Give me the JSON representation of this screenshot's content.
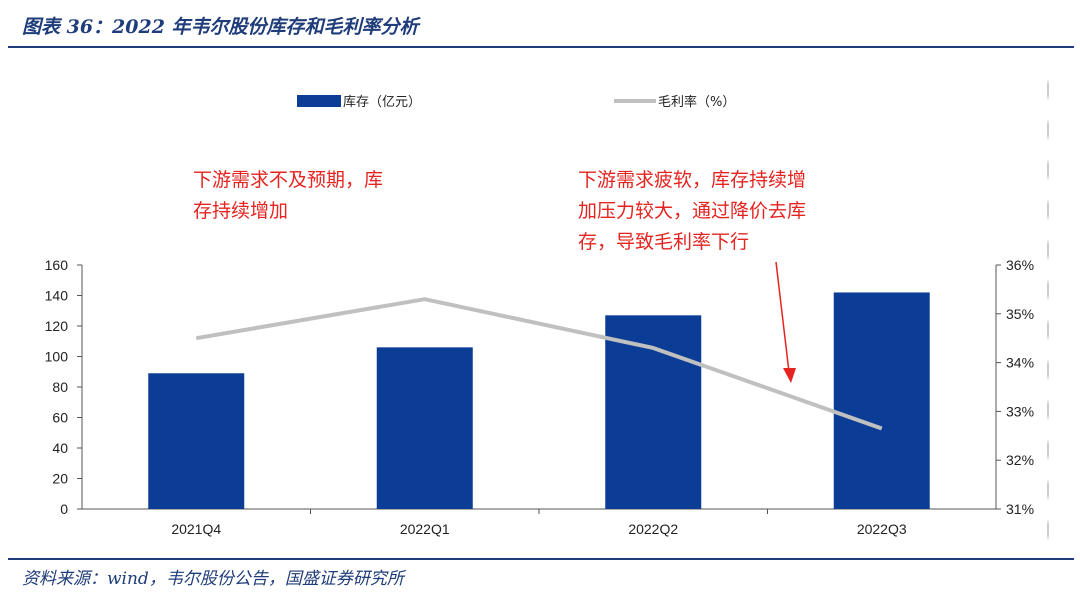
{
  "figure": {
    "title": "图表 36：2022 年韦尔股份库存和毛利率分析",
    "source": "资料来源：wind，韦尔股份公告，国盛证券研究所"
  },
  "chart_data": {
    "type": "bar+line",
    "categories": [
      "2021Q4",
      "2022Q1",
      "2022Q2",
      "2022Q3"
    ],
    "series": [
      {
        "name": "库存（亿元）",
        "type": "bar",
        "axis": "left",
        "color": "#0b3d96",
        "values": [
          89,
          106,
          127,
          142
        ]
      },
      {
        "name": "毛利率（%）",
        "type": "line",
        "axis": "right",
        "color": "#c0c0c0",
        "values": [
          34.5,
          35.3,
          34.3,
          32.65
        ]
      }
    ],
    "yleft": {
      "min": 0,
      "max": 160,
      "step": 20,
      "tick_labels": [
        "0",
        "20",
        "40",
        "60",
        "80",
        "100",
        "120",
        "140",
        "160"
      ]
    },
    "yright": {
      "min": 31,
      "max": 36,
      "step": 1,
      "tick_labels": [
        "31%",
        "32%",
        "33%",
        "34%",
        "35%",
        "36%"
      ]
    },
    "grid": false,
    "legend_position": "top",
    "annotations": [
      {
        "lines": [
          "下游需求不及预期，库",
          "存持续增加"
        ],
        "color": "#e52420"
      },
      {
        "lines": [
          "下游需求疲软，库存持续增",
          "加压力较大，通过降价去库",
          "存，导致毛利率下行"
        ],
        "color": "#e52420",
        "arrow": true
      }
    ]
  }
}
